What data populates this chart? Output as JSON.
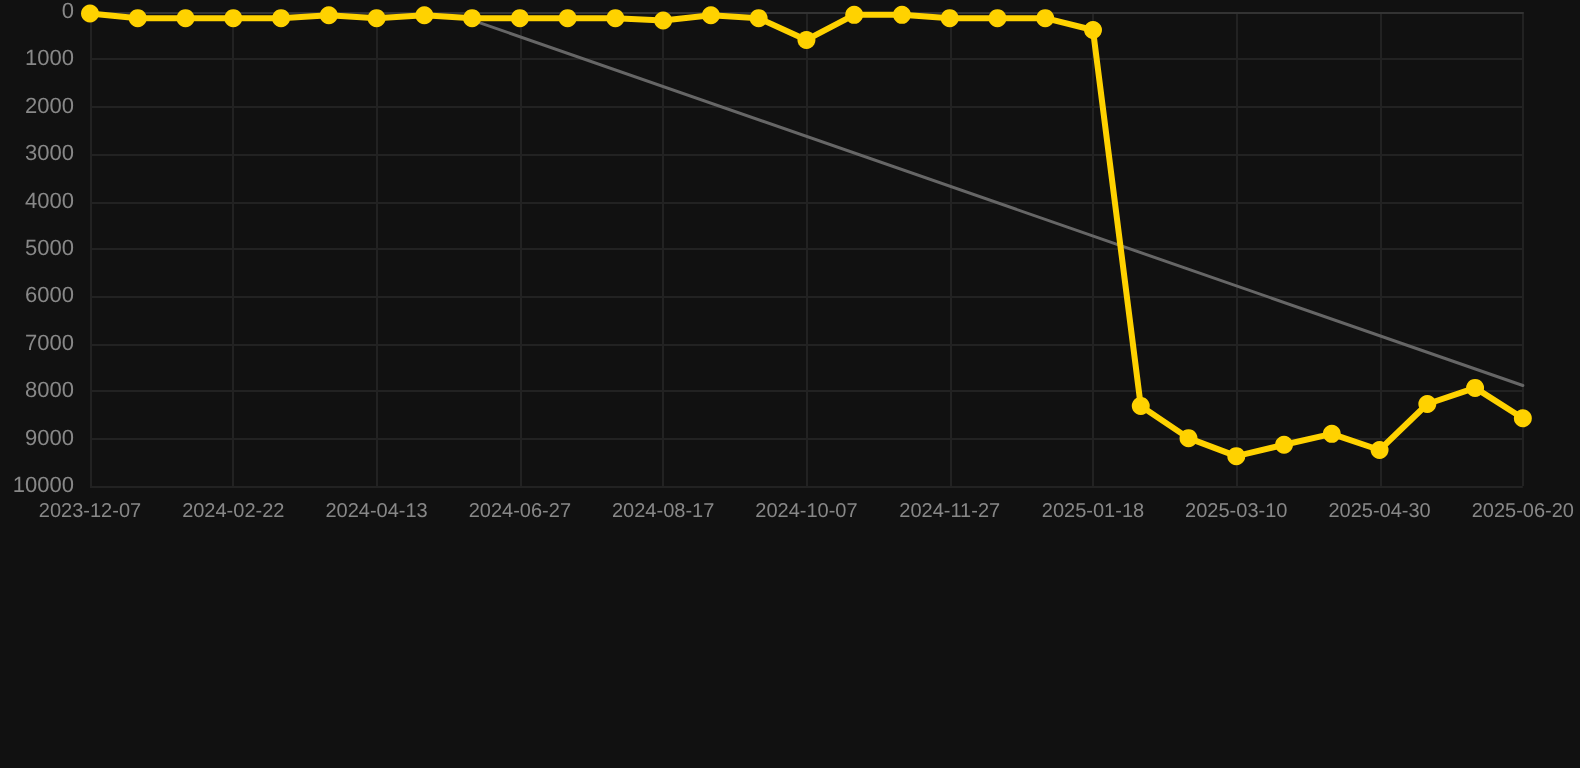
{
  "chart_data": {
    "type": "line",
    "categories": [
      "2023-12-07",
      null,
      null,
      "2024-02-22",
      null,
      null,
      "2024-04-13",
      null,
      null,
      "2024-06-27",
      null,
      null,
      "2024-08-17",
      null,
      null,
      "2024-10-07",
      null,
      null,
      "2024-11-27",
      null,
      null,
      "2025-01-18",
      null,
      null,
      "2025-03-10",
      null,
      null,
      "2025-04-30",
      null,
      null,
      "2025-06-20"
    ],
    "series": [
      {
        "color": "#ffd200",
        "values": [
          30,
          130,
          130,
          130,
          130,
          70,
          130,
          70,
          130,
          130,
          130,
          130,
          180,
          70,
          130,
          590,
          60,
          60,
          130,
          130,
          130,
          380,
          8310,
          8990,
          9370,
          9130,
          8900,
          9240,
          8270,
          7930,
          8570
        ]
      },
      {
        "color": "#666666",
        "marker": "none",
        "values": [
          null,
          null,
          null,
          null,
          null,
          null,
          null,
          null,
          170,
          null,
          null,
          null,
          null,
          null,
          null,
          null,
          null,
          null,
          null,
          null,
          null,
          null,
          null,
          null,
          null,
          null,
          null,
          null,
          null,
          null,
          7880
        ]
      }
    ],
    "ylim": [
      10000,
      0
    ],
    "yticks": [
      0,
      1000,
      2000,
      3000,
      4000,
      5000,
      6000,
      7000,
      8000,
      9000,
      10000
    ],
    "grid": true,
    "marker": "circle",
    "line_style": "solid"
  }
}
